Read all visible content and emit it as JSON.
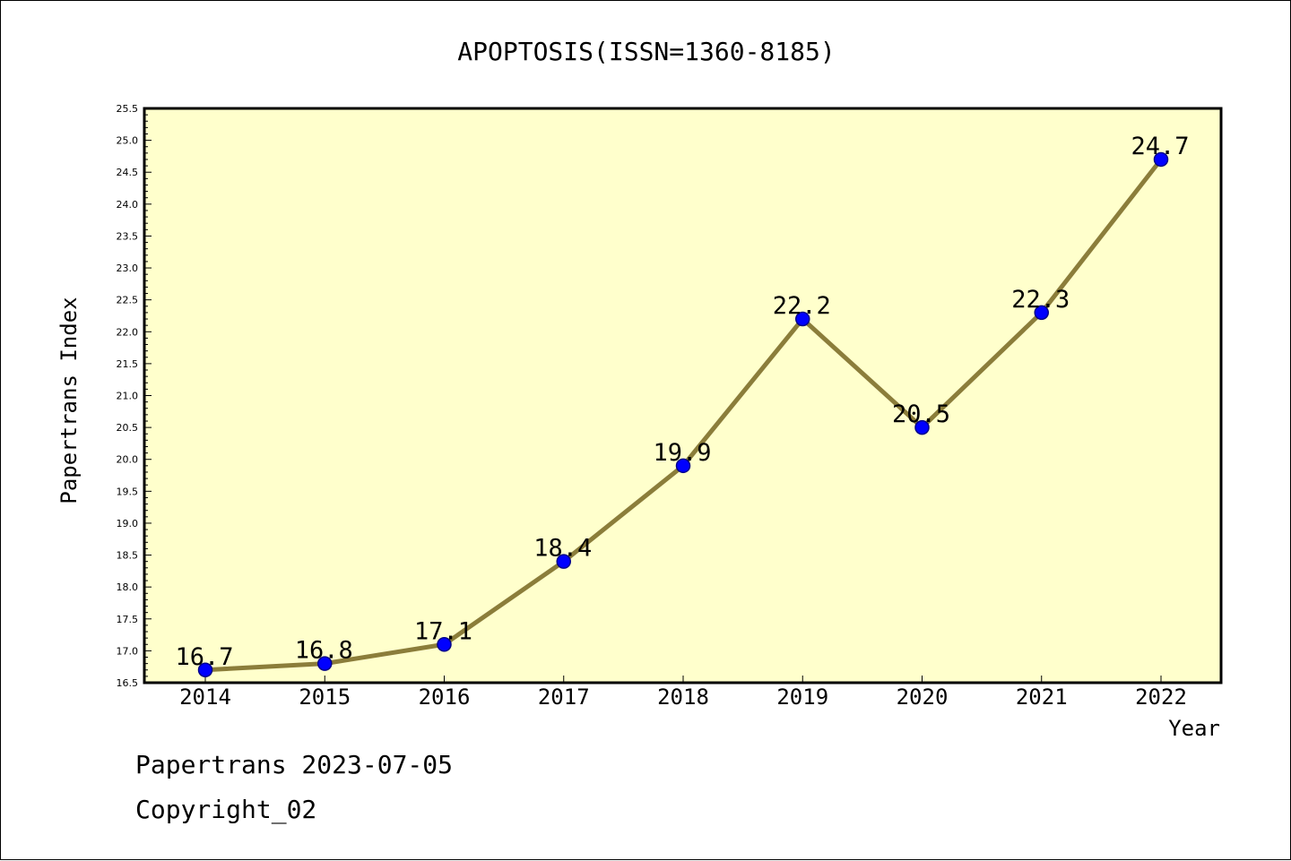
{
  "chart_data": {
    "type": "line",
    "title": "APOPTOSIS(ISSN=1360-8185)",
    "xlabel": "Year",
    "ylabel": "Papertrans Index",
    "x": [
      "2014",
      "2015",
      "2016",
      "2017",
      "2018",
      "2019",
      "2020",
      "2021",
      "2022"
    ],
    "values": [
      16.7,
      16.8,
      17.1,
      18.4,
      19.9,
      22.2,
      20.5,
      22.3,
      24.7
    ],
    "data_labels": [
      "16.7",
      "16.8",
      "17.1",
      "18.4",
      "19.9",
      "22.2",
      "20.5",
      "22.3",
      "24.7"
    ],
    "ylim": [
      16.5,
      25.5
    ],
    "yticks": [
      "16.5",
      "17.0",
      "17.5",
      "18.0",
      "18.5",
      "19.0",
      "19.5",
      "20.0",
      "20.5",
      "21.0",
      "21.5",
      "22.0",
      "22.5",
      "23.0",
      "23.5",
      "24.0",
      "24.5",
      "25.0",
      "25.5"
    ],
    "grid": false,
    "legend": "none",
    "colors": {
      "plot_background": "#FFFFCC",
      "line": "#8B7D3A",
      "marker_fill": "#0000FF",
      "marker_edge": "#00008B"
    }
  },
  "footer": {
    "line1": "Papertrans 2023-07-05",
    "line2": "Copyright_02"
  }
}
